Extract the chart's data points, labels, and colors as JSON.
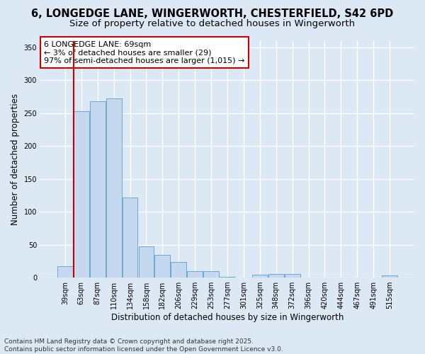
{
  "title_line1": "6, LONGEDGE LANE, WINGERWORTH, CHESTERFIELD, S42 6PD",
  "title_line2": "Size of property relative to detached houses in Wingerworth",
  "xlabel": "Distribution of detached houses by size in Wingerworth",
  "ylabel": "Number of detached properties",
  "categories": [
    "39sqm",
    "63sqm",
    "87sqm",
    "110sqm",
    "134sqm",
    "158sqm",
    "182sqm",
    "206sqm",
    "229sqm",
    "253sqm",
    "277sqm",
    "301sqm",
    "325sqm",
    "348sqm",
    "372sqm",
    "396sqm",
    "420sqm",
    "444sqm",
    "467sqm",
    "491sqm",
    "515sqm"
  ],
  "values": [
    17,
    253,
    268,
    272,
    122,
    47,
    35,
    24,
    10,
    10,
    1,
    0,
    4,
    5,
    5,
    0,
    0,
    0,
    0,
    0,
    3
  ],
  "bar_color": "#c5d8ef",
  "bar_edge_color": "#6aaad4",
  "vline_color": "#cc0000",
  "annotation_text": "6 LONGEDGE LANE: 69sqm\n← 3% of detached houses are smaller (29)\n97% of semi-detached houses are larger (1,015) →",
  "annotation_box_color": "#ffffff",
  "annotation_box_edge_color": "#cc0000",
  "ylim": [
    0,
    360
  ],
  "yticks": [
    0,
    50,
    100,
    150,
    200,
    250,
    300,
    350
  ],
  "background_color": "#dde8f5",
  "grid_color": "#ffffff",
  "footer_text": "Contains HM Land Registry data © Crown copyright and database right 2025.\nContains public sector information licensed under the Open Government Licence v3.0.",
  "title_fontsize": 10.5,
  "subtitle_fontsize": 9.5,
  "axis_label_fontsize": 8.5,
  "tick_fontsize": 7,
  "annotation_fontsize": 8,
  "footer_fontsize": 6.5
}
